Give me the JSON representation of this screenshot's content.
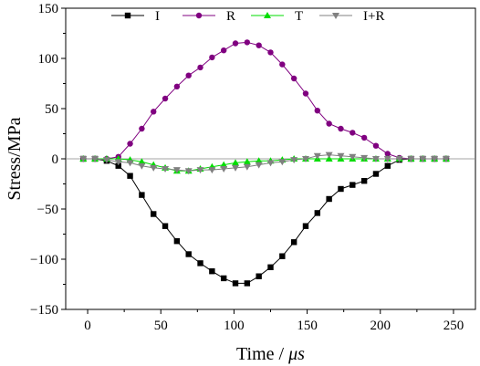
{
  "chart_data": {
    "type": "line",
    "xlabel_parts": [
      "Time / ",
      "μs"
    ],
    "ylabel": "Stress/MPa",
    "xlim": [
      -15,
      265
    ],
    "ylim": [
      -150,
      150
    ],
    "xticks": [
      0,
      50,
      100,
      150,
      200,
      250
    ],
    "yticks": [
      -150,
      -100,
      -50,
      0,
      50,
      100,
      150
    ],
    "grid": false,
    "legend_position": "top",
    "series": [
      {
        "name": "I",
        "color": "#000000",
        "marker": "square",
        "x": [
          -3,
          5,
          13,
          21,
          29,
          37,
          45,
          53,
          61,
          69,
          77,
          85,
          93,
          101,
          109,
          117,
          125,
          133,
          141,
          149,
          157,
          165,
          173,
          181,
          189,
          197,
          205,
          213,
          221,
          229,
          237,
          245
        ],
        "y": [
          0,
          0,
          -2,
          -7,
          -17,
          -36,
          -55,
          -67,
          -82,
          -95,
          -104,
          -112,
          -119,
          -124,
          -124,
          -117,
          -108,
          -97,
          -83,
          -67,
          -54,
          -40,
          -30,
          -26,
          -22,
          -15,
          -7,
          -1,
          0,
          0,
          0,
          0
        ]
      },
      {
        "name": "R",
        "color": "#800080",
        "marker": "circle",
        "x": [
          -3,
          5,
          13,
          21,
          29,
          37,
          45,
          53,
          61,
          69,
          77,
          85,
          93,
          101,
          109,
          117,
          125,
          133,
          141,
          149,
          157,
          165,
          173,
          181,
          189,
          197,
          205,
          213,
          221,
          229,
          237,
          245
        ],
        "y": [
          0,
          0,
          0,
          2,
          15,
          30,
          47,
          60,
          72,
          83,
          91,
          101,
          108,
          115,
          116,
          113,
          106,
          94,
          80,
          65,
          48,
          35,
          30,
          26,
          21,
          13,
          5,
          1,
          0,
          0,
          0,
          0
        ]
      },
      {
        "name": "T",
        "color": "#00dd00",
        "marker": "triangle-up",
        "x": [
          -3,
          5,
          13,
          21,
          29,
          37,
          45,
          53,
          61,
          69,
          77,
          85,
          93,
          101,
          109,
          117,
          125,
          133,
          141,
          149,
          157,
          165,
          173,
          181,
          189,
          197,
          205,
          213,
          221,
          229,
          237,
          245
        ],
        "y": [
          0,
          0,
          0,
          0,
          -1,
          -3,
          -6,
          -9,
          -12,
          -12,
          -10,
          -8,
          -6,
          -4,
          -3,
          -2,
          -2,
          -1,
          0,
          0,
          0,
          0,
          0,
          0,
          0,
          0,
          0,
          0,
          0,
          0,
          0,
          0
        ]
      },
      {
        "name": "I+R",
        "color": "#808080",
        "marker": "triangle-down",
        "x": [
          -3,
          5,
          13,
          21,
          29,
          37,
          45,
          53,
          61,
          69,
          77,
          85,
          93,
          101,
          109,
          117,
          125,
          133,
          141,
          149,
          157,
          165,
          173,
          181,
          189,
          197,
          205,
          213,
          221,
          229,
          237,
          245
        ],
        "y": [
          0,
          0,
          -1,
          -3,
          -4,
          -7,
          -9,
          -10,
          -11,
          -12,
          -11,
          -11,
          -10,
          -9,
          -8,
          -6,
          -4,
          -3,
          -1,
          0,
          3,
          4,
          3,
          2,
          1,
          0,
          0,
          0,
          0,
          0,
          0,
          0
        ]
      }
    ]
  }
}
